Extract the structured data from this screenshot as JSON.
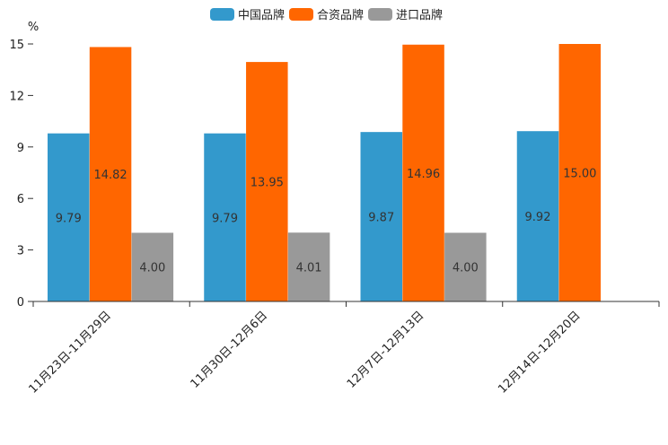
{
  "chart_data": {
    "type": "bar",
    "title": "",
    "xlabel": "",
    "ylabel": "%",
    "ylim": [
      0,
      15
    ],
    "yticks": [
      0,
      3,
      6,
      9,
      12,
      15
    ],
    "grid": false,
    "legend_position": "top-center",
    "categories": [
      "11月23日-11月29日",
      "11月30日-12月6日",
      "12月7日-12月13日",
      "12月14日-12月20日"
    ],
    "series": [
      {
        "name": "中国品牌",
        "color": "#3399CC",
        "values": [
          9.79,
          9.79,
          9.87,
          9.92
        ],
        "labels": [
          "9.79",
          "9.79",
          "9.87",
          "9.92"
        ]
      },
      {
        "name": "合资品牌",
        "color": "#FF6600",
        "values": [
          14.82,
          13.95,
          14.96,
          15.0
        ],
        "labels": [
          "14.82",
          "13.95",
          "14.96",
          "15.00"
        ]
      },
      {
        "name": "进口品牌",
        "color": "#999999",
        "values": [
          4.0,
          4.01,
          4.0,
          null
        ],
        "labels": [
          "4.00",
          "4.01",
          "4.00",
          null
        ]
      }
    ]
  }
}
